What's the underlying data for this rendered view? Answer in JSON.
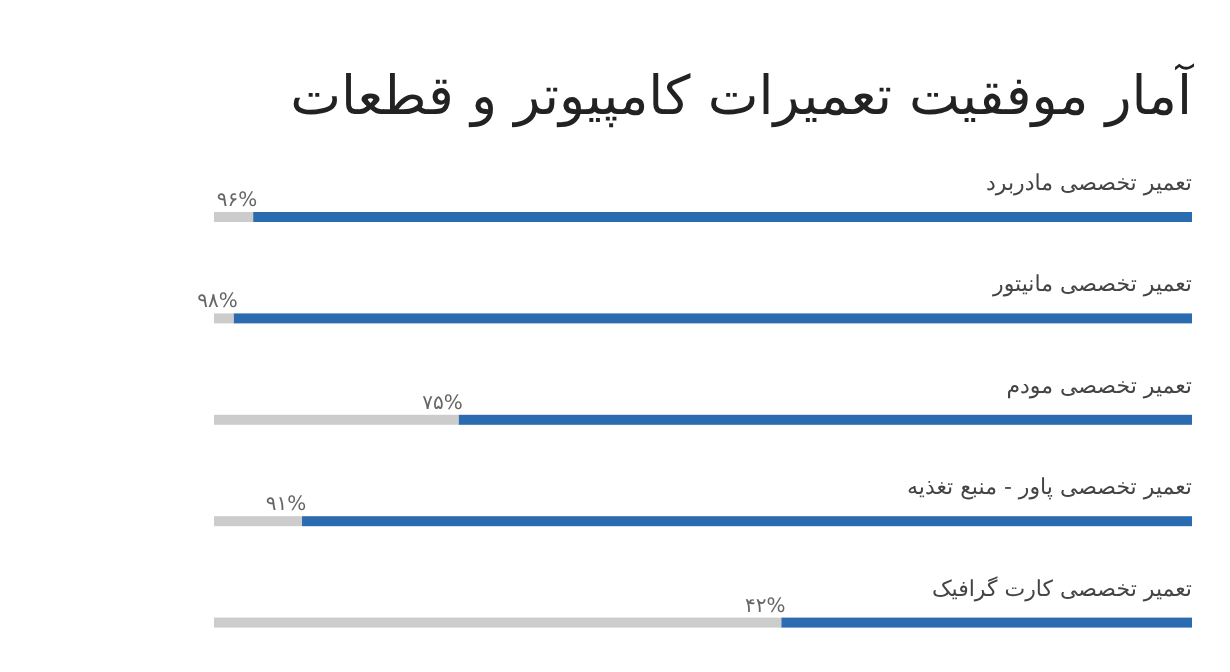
{
  "chart_data": {
    "type": "bar",
    "orientation": "horizontal",
    "stacked": true,
    "title": "آمار موفقیت تعمیرات کامپیوتر و قطعات",
    "categories": [
      "تعمیر تخصصی مادربرد",
      "تعمیر تخصصی مانیتور",
      "تعمیر تخصصی مودم",
      "تعمیر تخصصی پاور - منبع تغذیه",
      "تعمیر تخصصی کارت گرافیک"
    ],
    "xlim": [
      100,
      0
    ],
    "series": [
      {
        "color": "#2b6cb0",
        "values": [
          96,
          98,
          75,
          91,
          42
        ],
        "value_labels": [
          "۹۶%",
          "۹۸%",
          "۷۵%",
          "۹۱%",
          "۴۲%"
        ]
      },
      {
        "color": "#cccccc",
        "values": [
          4,
          2,
          25,
          9,
          58
        ]
      }
    ]
  }
}
